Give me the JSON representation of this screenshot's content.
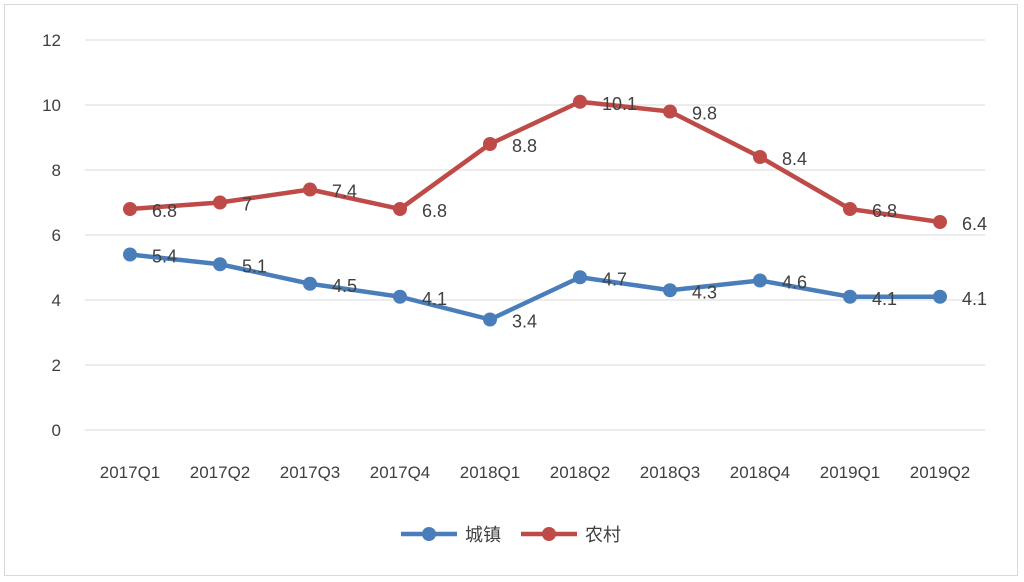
{
  "chart_data": {
    "type": "line",
    "categories": [
      "2017Q1",
      "2017Q2",
      "2017Q3",
      "2017Q4",
      "2018Q1",
      "2018Q2",
      "2018Q3",
      "2018Q4",
      "2019Q1",
      "2019Q2"
    ],
    "series": [
      {
        "name": "城镇",
        "color": "#4a7ebb",
        "values": [
          5.4,
          5.1,
          4.5,
          4.1,
          3.4,
          4.7,
          4.3,
          4.6,
          4.1,
          4.1
        ],
        "labels": [
          "5.4",
          "5.1",
          "4.5",
          "4.1",
          "3.4",
          "4.7",
          "4.3",
          "4.6",
          "4.1",
          "4.1"
        ]
      },
      {
        "name": "农村",
        "color": "#be4b48",
        "values": [
          6.8,
          7,
          7.4,
          6.8,
          8.8,
          10.1,
          9.8,
          8.4,
          6.8,
          6.4
        ],
        "labels": [
          "6.8",
          "7",
          "7.4",
          "6.8",
          "8.8",
          "10.1",
          "9.8",
          "8.4",
          "6.8",
          "6.4"
        ]
      }
    ],
    "y_ticks": [
      "0",
      "2",
      "4",
      "6",
      "8",
      "10",
      "12"
    ],
    "ylim": [
      0,
      12
    ],
    "grid": true,
    "legend_position": "bottom-center",
    "title": "",
    "xlabel": "",
    "ylabel": ""
  }
}
